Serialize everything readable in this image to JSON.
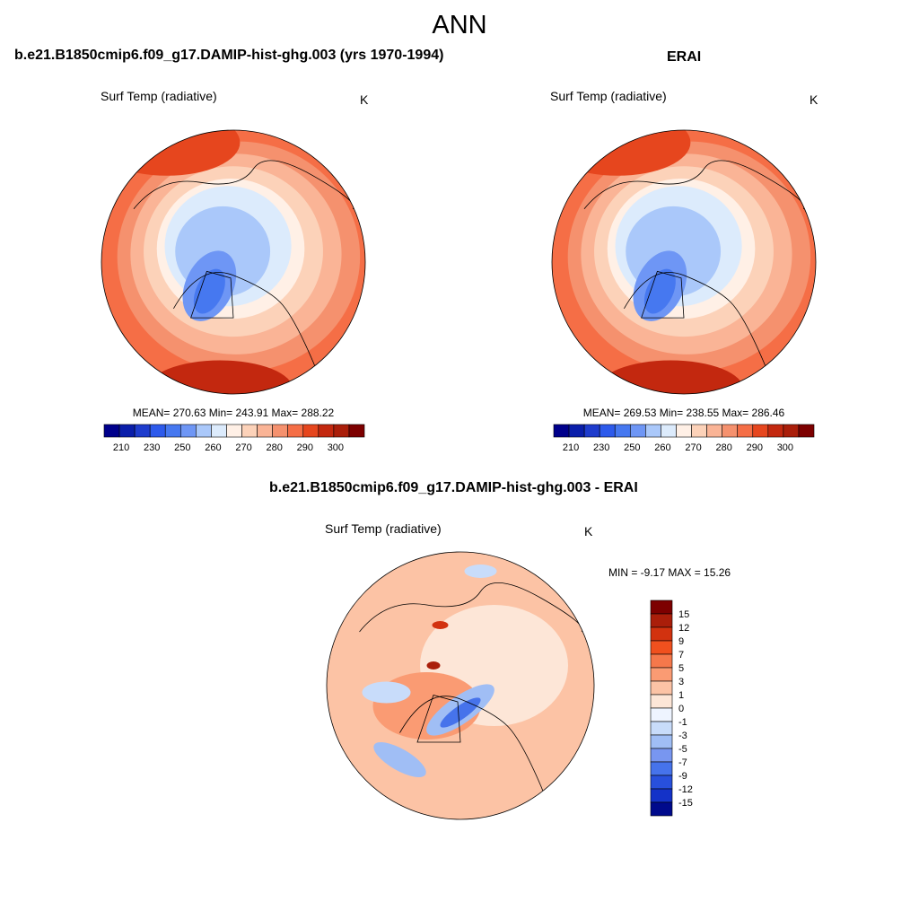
{
  "figure": {
    "title": "ANN"
  },
  "panels": [
    {
      "title": "b.e21.B1850cmip6.f09_g17.DAMIP-hist-ghg.003 (yrs 1970-1994)",
      "variable": "Surf Temp (radiative)",
      "units": "K",
      "stats": "MEAN= 270.63  Min= 243.91  Max= 288.22",
      "colorbar_labels": [
        "210",
        "230",
        "250",
        "260",
        "270",
        "280",
        "290",
        "300"
      ]
    },
    {
      "title": "ERAI",
      "variable": "Surf Temp (radiative)",
      "units": "K",
      "stats": "MEAN= 269.53  Min= 238.55  Max= 286.46",
      "colorbar_labels": [
        "210",
        "230",
        "250",
        "260",
        "270",
        "280",
        "290",
        "300"
      ]
    },
    {
      "title": "b.e21.B1850cmip6.f09_g17.DAMIP-hist-ghg.003 - ERAI",
      "variable": "Surf Temp (radiative)",
      "units": "K",
      "stats": "MIN =  -9.17 MAX =  15.26",
      "colorbar_labels": [
        "15",
        "12",
        "9",
        "7",
        "5",
        "3",
        "1",
        "0",
        "-1",
        "-3",
        "-5",
        "-7",
        "-9",
        "-12",
        "-15"
      ]
    }
  ],
  "colors": {
    "abs_scale": [
      "#00008b",
      "#0a1eaa",
      "#1e3ccd",
      "#2d5aeb",
      "#4678f0",
      "#6e96f5",
      "#aac8fa",
      "#dcebfc",
      "#fff0e6",
      "#fcd2b9",
      "#fab496",
      "#f5916e",
      "#f56e46",
      "#e6461e",
      "#c3280f",
      "#aa1e0a",
      "#7d0000"
    ],
    "diff_scale": [
      "#7d0000",
      "#aa1e0a",
      "#d2320f",
      "#f0501e",
      "#f5784b",
      "#fa9b73",
      "#fcc3a5",
      "#fde6d7",
      "#eef4ff",
      "#c8dcfa",
      "#a0bef5",
      "#7896f0",
      "#4673eb",
      "#2850dc",
      "#1432c8",
      "#000a8c"
    ]
  }
}
